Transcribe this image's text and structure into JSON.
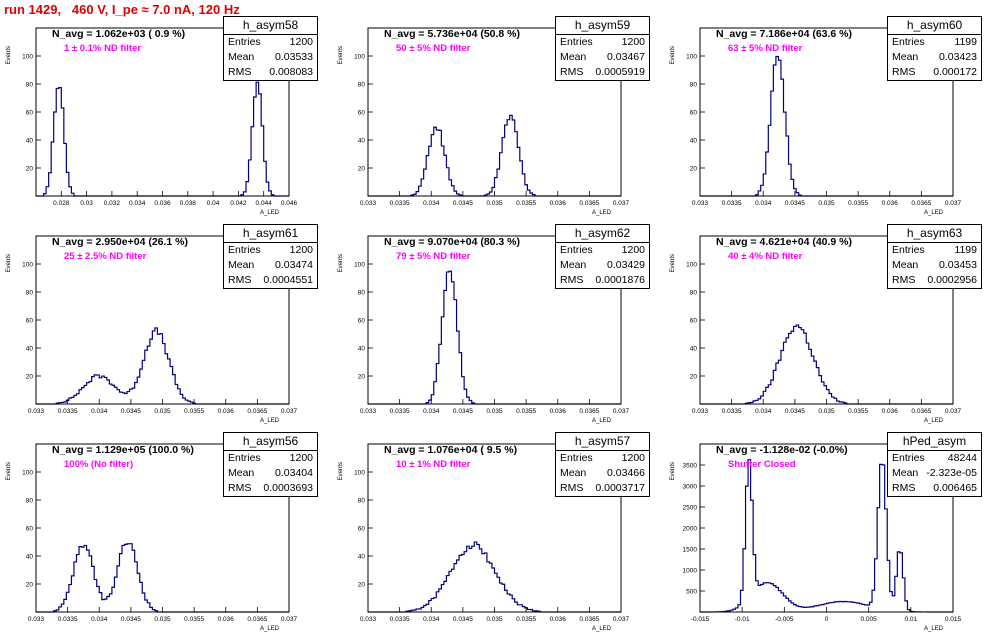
{
  "title": "run 1429,   460 V, I_pe ≈ 7.0 nA, 120 Hz",
  "stat_labels": {
    "entries": "Entries",
    "mean": "Mean",
    "rms": "RMS"
  },
  "chart_data": [
    {
      "type": "histogram",
      "name": "h_asym58",
      "navg": "N_avg = 1.062e+03 ( 0.9 %)",
      "filter": "1 ± 0.1% ND filter",
      "entries": "1200",
      "mean": "0.03533",
      "rms": "0.008083",
      "xlim": [
        0.026,
        0.046
      ],
      "ylim": [
        0,
        120
      ],
      "ylabel": "Events",
      "xlabel": "A_LED",
      "xticks": [
        0.028,
        0.03,
        0.032,
        0.034,
        0.036,
        0.038,
        0.04,
        0.042,
        0.044,
        0.046
      ],
      "xtick_labels": [
        "0.028",
        "0.03",
        "0.032",
        "0.034",
        "0.036",
        "0.038",
        "0.04",
        "0.042",
        "0.044",
        "0.046"
      ],
      "yticks": [
        20,
        40,
        60,
        80,
        100
      ],
      "peaks": [
        {
          "center": 0.0278,
          "sigma": 0.0004,
          "height": 80
        },
        {
          "center": 0.0435,
          "sigma": 0.0004,
          "height": 80
        }
      ]
    },
    {
      "type": "histogram",
      "name": "h_asym59",
      "navg": "N_avg = 5.736e+04 (50.8 %)",
      "filter": "50 ± 5% ND filter",
      "entries": "1200",
      "mean": "0.03467",
      "rms": "0.0005919",
      "xlim": [
        0.033,
        0.037
      ],
      "ylim": [
        0,
        120
      ],
      "ylabel": "Events",
      "xlabel": "A_LED",
      "xticks": [
        0.033,
        0.0335,
        0.034,
        0.0345,
        0.035,
        0.0355,
        0.036,
        0.0365,
        0.037
      ],
      "xtick_labels": [
        "0.033",
        "0.0335",
        "0.034",
        "0.0345",
        "0.035",
        "0.0355",
        "0.036",
        "0.0365",
        "0.037"
      ],
      "yticks": [
        20,
        40,
        60,
        80,
        100
      ],
      "peaks": [
        {
          "center": 0.03408,
          "sigma": 0.00013,
          "height": 50
        },
        {
          "center": 0.03525,
          "sigma": 0.00013,
          "height": 57
        }
      ]
    },
    {
      "type": "histogram",
      "name": "h_asym60",
      "navg": "N_avg = 7.186e+04 (63.6 %)",
      "filter": "63 ± 5% ND filter",
      "entries": "1199",
      "mean": "0.03423",
      "rms": "0.000172",
      "xlim": [
        0.033,
        0.037
      ],
      "ylim": [
        0,
        120
      ],
      "ylabel": "Events",
      "xlabel": "A_LED",
      "xticks": [
        0.033,
        0.0335,
        0.034,
        0.0345,
        0.035,
        0.0355,
        0.036,
        0.0365,
        0.037
      ],
      "xtick_labels": [
        "0.033",
        "0.0335",
        "0.034",
        "0.0345",
        "0.035",
        "0.0355",
        "0.036",
        "0.0365",
        "0.037"
      ],
      "yticks": [
        20,
        40,
        60,
        80,
        100
      ],
      "peaks": [
        {
          "center": 0.03423,
          "sigma": 0.00011,
          "height": 103
        }
      ]
    },
    {
      "type": "histogram",
      "name": "h_asym61",
      "navg": "N_avg = 2.950e+04 (26.1 %)",
      "filter": "25 ± 2.5% ND filter",
      "entries": "1200",
      "mean": "0.03474",
      "rms": "0.0004551",
      "xlim": [
        0.033,
        0.037
      ],
      "ylim": [
        0,
        120
      ],
      "ylabel": "Events",
      "xlabel": "A_LED",
      "xticks": [
        0.033,
        0.0335,
        0.034,
        0.0345,
        0.035,
        0.0355,
        0.036,
        0.0365,
        0.037
      ],
      "xtick_labels": [
        "0.033",
        "0.0335",
        "0.034",
        "0.0345",
        "0.035",
        "0.0355",
        "0.036",
        "0.0365",
        "0.037"
      ],
      "yticks": [
        20,
        40,
        60,
        80,
        100
      ],
      "peaks": [
        {
          "center": 0.034,
          "sigma": 0.00025,
          "height": 20
        },
        {
          "center": 0.0349,
          "sigma": 0.0002,
          "height": 52
        }
      ]
    },
    {
      "type": "histogram",
      "name": "h_asym62",
      "navg": "N_avg = 9.070e+04 (80.3 %)",
      "filter": "79 ± 5% ND filter",
      "entries": "1200",
      "mean": "0.03429",
      "rms": "0.0001876",
      "xlim": [
        0.033,
        0.037
      ],
      "ylim": [
        0,
        120
      ],
      "ylabel": "Events",
      "xlabel": "A_LED",
      "xticks": [
        0.033,
        0.0335,
        0.034,
        0.0345,
        0.035,
        0.0355,
        0.036,
        0.0365,
        0.037
      ],
      "xtick_labels": [
        "0.033",
        "0.0335",
        "0.034",
        "0.0345",
        "0.035",
        "0.0355",
        "0.036",
        "0.0365",
        "0.037"
      ],
      "yticks": [
        20,
        40,
        60,
        80,
        100
      ],
      "peaks": [
        {
          "center": 0.03429,
          "sigma": 0.00012,
          "height": 95
        }
      ]
    },
    {
      "type": "histogram",
      "name": "h_asym63",
      "navg": "N_avg = 4.621e+04 (40.9 %)",
      "filter": "40 ± 4% ND filter",
      "entries": "1199",
      "mean": "0.03453",
      "rms": "0.0002956",
      "xlim": [
        0.033,
        0.037
      ],
      "ylim": [
        0,
        120
      ],
      "ylabel": "Events",
      "xlabel": "A_LED",
      "xticks": [
        0.033,
        0.0335,
        0.034,
        0.0345,
        0.035,
        0.0355,
        0.036,
        0.0365,
        0.037
      ],
      "xtick_labels": [
        "0.033",
        "0.0335",
        "0.034",
        "0.0345",
        "0.035",
        "0.0355",
        "0.036",
        "0.0365",
        "0.037"
      ],
      "yticks": [
        20,
        40,
        60,
        80,
        100
      ],
      "peaks": [
        {
          "center": 0.03453,
          "sigma": 0.00026,
          "height": 56
        }
      ]
    },
    {
      "type": "histogram",
      "name": "h_asym56",
      "navg": "N_avg = 1.129e+05 (100.0 %)",
      "filter": "100% (No filter)",
      "entries": "1200",
      "mean": "0.03404",
      "rms": "0.0003693",
      "xlim": [
        0.033,
        0.037
      ],
      "ylim": [
        0,
        120
      ],
      "ylabel": "Events",
      "xlabel": "A_LED",
      "xticks": [
        0.033,
        0.0335,
        0.034,
        0.0345,
        0.035,
        0.0355,
        0.036,
        0.0365,
        0.037
      ],
      "xtick_labels": [
        "0.033",
        "0.0335",
        "0.034",
        "0.0345",
        "0.035",
        "0.0355",
        "0.036",
        "0.0365",
        "0.037"
      ],
      "yticks": [
        20,
        40,
        60,
        80,
        100
      ],
      "peaks": [
        {
          "center": 0.03375,
          "sigma": 0.00016,
          "height": 48
        },
        {
          "center": 0.03445,
          "sigma": 0.00016,
          "height": 50
        }
      ]
    },
    {
      "type": "histogram",
      "name": "h_asym57",
      "navg": "N_avg = 1.076e+04 ( 9.5 %)",
      "filter": "10 ± 1% ND filter",
      "entries": "1200",
      "mean": "0.03466",
      "rms": "0.0003717",
      "xlim": [
        0.033,
        0.037
      ],
      "ylim": [
        0,
        120
      ],
      "ylabel": "Events",
      "xlabel": "A_LED",
      "xticks": [
        0.033,
        0.0335,
        0.034,
        0.0345,
        0.035,
        0.0355,
        0.036,
        0.0365,
        0.037
      ],
      "xtick_labels": [
        "0.033",
        "0.0335",
        "0.034",
        "0.0345",
        "0.035",
        "0.0355",
        "0.036",
        "0.0365",
        "0.037"
      ],
      "yticks": [
        20,
        40,
        60,
        80,
        100
      ],
      "peaks": [
        {
          "center": 0.03466,
          "sigma": 0.00035,
          "height": 48
        }
      ]
    },
    {
      "type": "histogram",
      "name": "hPed_asym",
      "navg": "N_avg = -1.128e-02 (-0.0%)",
      "filter": "Shutter Closed",
      "entries": "48244",
      "mean": "-2.323e-05",
      "rms": "0.006465",
      "xlim": [
        -0.015,
        0.015
      ],
      "ylim": [
        0,
        4000
      ],
      "ylabel": "Events",
      "xlabel": "A_LED",
      "xticks": [
        -0.015,
        -0.01,
        -0.005,
        0,
        0.005,
        0.01,
        0.015
      ],
      "xtick_labels": [
        "-0.015",
        "-0.01",
        "-0.005",
        "0",
        "0.005",
        "0.01",
        "0.015"
      ],
      "yticks": [
        500,
        1000,
        1500,
        2000,
        2500,
        3000,
        3500
      ],
      "peaks": [
        {
          "center": -0.0092,
          "sigma": 0.0004,
          "height": 3300
        },
        {
          "center": -0.007,
          "sigma": 0.0018,
          "height": 700
        },
        {
          "center": 0.002,
          "sigma": 0.003,
          "height": 250
        },
        {
          "center": 0.0066,
          "sigma": 0.0005,
          "height": 3600
        },
        {
          "center": 0.0087,
          "sigma": 0.0004,
          "height": 1500
        }
      ]
    }
  ]
}
